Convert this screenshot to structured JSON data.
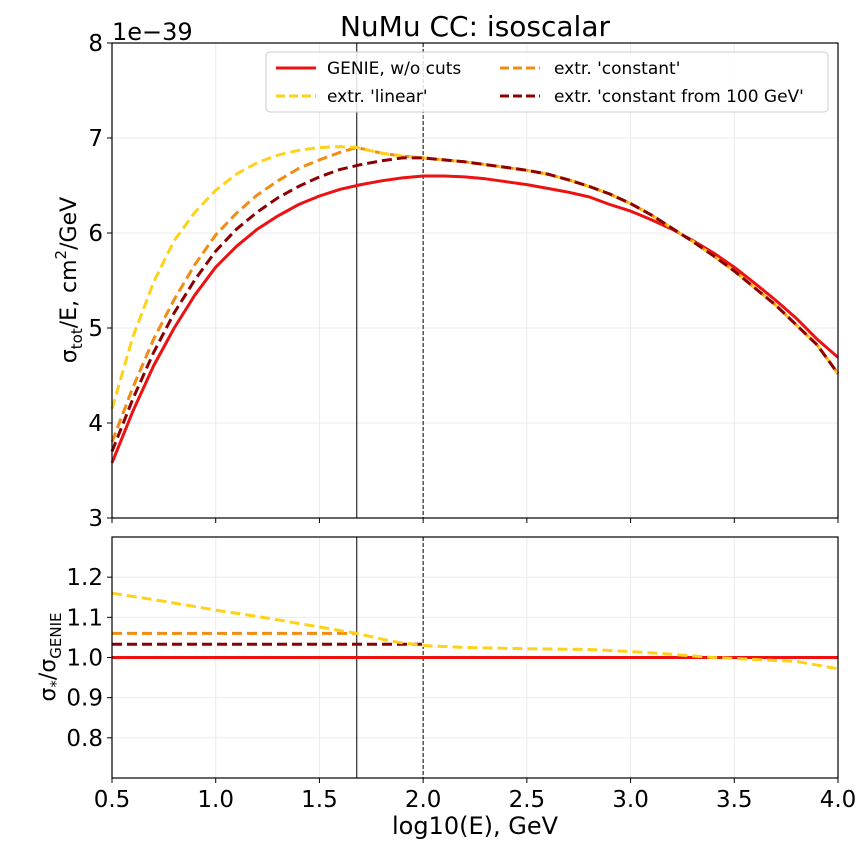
{
  "chart_data": [
    {
      "type": "line",
      "panel": "top",
      "title": "NuMu CC: isoscalar",
      "offset_label": "1e−39",
      "ylabel": "σ_tot/E, cm^2/GeV",
      "xlim": [
        0.5,
        4.0
      ],
      "ylim": [
        3,
        8
      ],
      "yticks": [
        3,
        4,
        5,
        6,
        7,
        8
      ],
      "ytick_labels": [
        "3",
        "4",
        "5",
        "6",
        "7",
        "8"
      ],
      "grid": true,
      "legend_position": "top-right",
      "vlines": [
        {
          "x": 1.68,
          "style": "solid"
        },
        {
          "x": 2.0,
          "style": "dashed"
        }
      ],
      "series": [
        {
          "name": "GENIE, w/o cuts",
          "color": "#ee1111",
          "dash": "solid",
          "x": [
            0.5,
            0.6,
            0.7,
            0.8,
            0.9,
            1.0,
            1.1,
            1.2,
            1.3,
            1.4,
            1.5,
            1.6,
            1.7,
            1.8,
            1.9,
            2.0,
            2.1,
            2.2,
            2.3,
            2.4,
            2.5,
            2.6,
            2.7,
            2.8,
            2.9,
            3.0,
            3.1,
            3.2,
            3.3,
            3.4,
            3.5,
            3.6,
            3.7,
            3.8,
            3.9,
            4.0
          ],
          "y": [
            3.58,
            4.12,
            4.6,
            5.0,
            5.35,
            5.64,
            5.86,
            6.04,
            6.18,
            6.3,
            6.39,
            6.46,
            6.51,
            6.55,
            6.58,
            6.6,
            6.6,
            6.59,
            6.57,
            6.54,
            6.51,
            6.47,
            6.43,
            6.38,
            6.3,
            6.23,
            6.14,
            6.04,
            5.92,
            5.79,
            5.64,
            5.47,
            5.29,
            5.1,
            4.88,
            4.69
          ]
        },
        {
          "name": "extr. 'constant'",
          "color": "#f28c12",
          "dash": "dashed",
          "x": [
            0.5,
            0.6,
            0.7,
            0.8,
            0.9,
            1.0,
            1.1,
            1.2,
            1.3,
            1.4,
            1.5,
            1.6,
            1.68,
            1.8,
            1.9,
            2.0,
            2.1,
            2.2,
            2.3,
            2.4,
            2.5,
            2.6,
            2.7,
            2.8,
            2.9,
            3.0,
            3.1,
            3.2,
            3.3,
            3.4,
            3.5,
            3.6,
            3.7,
            3.8,
            3.9,
            4.0
          ],
          "y": [
            3.8,
            4.37,
            4.88,
            5.3,
            5.67,
            5.98,
            6.21,
            6.4,
            6.55,
            6.68,
            6.77,
            6.85,
            6.9,
            6.84,
            6.81,
            6.79,
            6.77,
            6.75,
            6.72,
            6.69,
            6.66,
            6.62,
            6.56,
            6.49,
            6.41,
            6.31,
            6.19,
            6.05,
            5.91,
            5.76,
            5.6,
            5.42,
            5.24,
            5.03,
            4.82,
            4.52
          ]
        },
        {
          "name": "extr. 'linear'",
          "color": "#ffd21a",
          "dash": "dashed",
          "x": [
            0.5,
            0.6,
            0.7,
            0.8,
            0.9,
            1.0,
            1.1,
            1.2,
            1.3,
            1.4,
            1.5,
            1.6,
            1.68,
            1.8,
            1.9,
            2.0,
            2.1,
            2.2,
            2.3,
            2.4,
            2.5,
            2.6,
            2.7,
            2.8,
            2.9,
            3.0,
            3.1,
            3.2,
            3.3,
            3.4,
            3.5,
            3.6,
            3.7,
            3.8,
            3.9,
            4.0
          ],
          "y": [
            4.15,
            4.9,
            5.48,
            5.92,
            6.22,
            6.45,
            6.62,
            6.74,
            6.82,
            6.87,
            6.9,
            6.91,
            6.9,
            6.84,
            6.81,
            6.79,
            6.77,
            6.75,
            6.72,
            6.69,
            6.66,
            6.62,
            6.56,
            6.49,
            6.41,
            6.31,
            6.19,
            6.05,
            5.91,
            5.76,
            5.6,
            5.42,
            5.24,
            5.03,
            4.82,
            4.52
          ]
        },
        {
          "name": "extr. 'constant from 100 GeV'",
          "color": "#8b0000",
          "dash": "dashed",
          "x": [
            0.5,
            0.6,
            0.7,
            0.8,
            0.9,
            1.0,
            1.1,
            1.2,
            1.3,
            1.4,
            1.5,
            1.6,
            1.7,
            1.8,
            1.9,
            2.0,
            2.1,
            2.2,
            2.3,
            2.4,
            2.5,
            2.6,
            2.7,
            2.8,
            2.9,
            3.0,
            3.1,
            3.2,
            3.3,
            3.4,
            3.5,
            3.6,
            3.7,
            3.8,
            3.9,
            4.0
          ],
          "y": [
            3.7,
            4.25,
            4.74,
            5.16,
            5.51,
            5.81,
            6.04,
            6.22,
            6.37,
            6.49,
            6.59,
            6.67,
            6.72,
            6.76,
            6.79,
            6.79,
            6.77,
            6.75,
            6.72,
            6.69,
            6.66,
            6.62,
            6.56,
            6.49,
            6.41,
            6.31,
            6.19,
            6.05,
            5.91,
            5.76,
            5.6,
            5.42,
            5.24,
            5.03,
            4.82,
            4.52
          ]
        }
      ]
    },
    {
      "type": "line",
      "panel": "bottom",
      "xlabel": "log10(E), GeV",
      "ylabel": "σ_*/σ_GENIE",
      "xlim": [
        0.5,
        4.0
      ],
      "ylim": [
        0.7,
        1.3
      ],
      "xticks": [
        0.5,
        1.0,
        1.5,
        2.0,
        2.5,
        3.0,
        3.5,
        4.0
      ],
      "xtick_labels": [
        "0.5",
        "1.0",
        "1.5",
        "2.0",
        "2.5",
        "3.0",
        "3.5",
        "4.0"
      ],
      "yticks": [
        0.8,
        0.9,
        1.0,
        1.1,
        1.2
      ],
      "ytick_labels": [
        "0.8",
        "0.9",
        "1.0",
        "1.1",
        "1.2"
      ],
      "grid": true,
      "vlines": [
        {
          "x": 1.68,
          "style": "solid"
        },
        {
          "x": 2.0,
          "style": "dashed"
        }
      ],
      "series": [
        {
          "color": "#ee1111",
          "dash": "solid",
          "x": [
            0.5,
            4.0
          ],
          "y": [
            1.0,
            1.0
          ]
        },
        {
          "color": "#f28c12",
          "dash": "dashed",
          "x": [
            0.5,
            1.68
          ],
          "y": [
            1.06,
            1.06
          ]
        },
        {
          "color": "#8b0000",
          "dash": "dashed",
          "x": [
            0.5,
            2.0
          ],
          "y": [
            1.033,
            1.033
          ]
        },
        {
          "color": "#ffd21a",
          "dash": "dashed",
          "x": [
            0.5,
            0.75,
            1.0,
            1.25,
            1.5,
            1.68,
            1.85,
            2.0,
            2.2,
            2.5,
            2.8,
            3.0,
            3.2,
            3.4,
            3.6,
            3.8,
            4.0
          ],
          "y": [
            1.16,
            1.14,
            1.118,
            1.098,
            1.076,
            1.06,
            1.04,
            1.03,
            1.025,
            1.022,
            1.02,
            1.015,
            1.008,
            1.0,
            0.995,
            0.99,
            0.972
          ]
        }
      ]
    }
  ]
}
